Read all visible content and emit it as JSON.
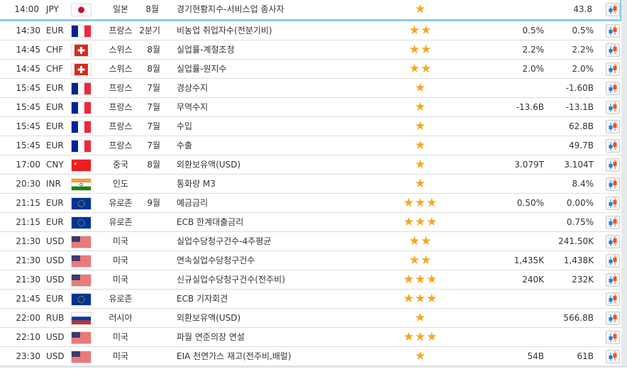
{
  "colors": {
    "star": "#f5a623",
    "highlight_border": "#8ecbea"
  },
  "rows": [
    {
      "time": "14:00",
      "currency": "JPY",
      "flag": "jp",
      "country": "일본",
      "period": "8월",
      "event": "경기현황지수-서비스업 종사자",
      "stars": "★",
      "forecast": "",
      "actual": "43.8"
    },
    {
      "time": "14:30",
      "currency": "EUR",
      "flag": "fr",
      "country": "프랑스",
      "period": "2분기",
      "event": "비농업 취업자수(전분기비)",
      "stars": "★★",
      "forecast": "0.5%",
      "actual": "0.5%"
    },
    {
      "time": "14:45",
      "currency": "CHF",
      "flag": "ch",
      "country": "스위스",
      "period": "8월",
      "event": "실업률-계절조정",
      "stars": "★★",
      "forecast": "2.2%",
      "actual": "2.2%"
    },
    {
      "time": "14:45",
      "currency": "CHF",
      "flag": "ch",
      "country": "스위스",
      "period": "8월",
      "event": "실업률-원지수",
      "stars": "★★",
      "forecast": "2.0%",
      "actual": "2.0%"
    },
    {
      "time": "15:45",
      "currency": "EUR",
      "flag": "fr",
      "country": "프랑스",
      "period": "7월",
      "event": "경상수지",
      "stars": "★",
      "forecast": "",
      "actual": "-1.60B"
    },
    {
      "time": "15:45",
      "currency": "EUR",
      "flag": "fr",
      "country": "프랑스",
      "period": "7월",
      "event": "무역수지",
      "stars": "★",
      "forecast": "-13.6B",
      "actual": "-13.1B"
    },
    {
      "time": "15:45",
      "currency": "EUR",
      "flag": "fr",
      "country": "프랑스",
      "period": "7월",
      "event": "수입",
      "stars": "★",
      "forecast": "",
      "actual": "62.8B"
    },
    {
      "time": "15:45",
      "currency": "EUR",
      "flag": "fr",
      "country": "프랑스",
      "period": "7월",
      "event": "수출",
      "stars": "★",
      "forecast": "",
      "actual": "49.7B"
    },
    {
      "time": "17:00",
      "currency": "CNY",
      "flag": "cn",
      "country": "중국",
      "period": "8월",
      "event": "외환보유액(USD)",
      "stars": "★",
      "forecast": "3.079T",
      "actual": "3.104T"
    },
    {
      "time": "20:30",
      "currency": "INR",
      "flag": "in",
      "country": "인도",
      "period": "",
      "event": "통화량 M3",
      "stars": "★",
      "forecast": "",
      "actual": "8.4%"
    },
    {
      "time": "21:15",
      "currency": "EUR",
      "flag": "eu",
      "country": "유로존",
      "period": "9월",
      "event": "예금금리",
      "stars": "★★★",
      "forecast": "0.50%",
      "actual": "0.00%"
    },
    {
      "time": "21:15",
      "currency": "EUR",
      "flag": "eu",
      "country": "유로존",
      "period": "",
      "event": "ECB 한계대출금리",
      "stars": "★★★",
      "forecast": "",
      "actual": "0.75%"
    },
    {
      "time": "21:30",
      "currency": "USD",
      "flag": "us",
      "country": "미국",
      "period": "",
      "event": "실업수당청구건수-4주평균",
      "stars": "★★",
      "forecast": "",
      "actual": "241.50K"
    },
    {
      "time": "21:30",
      "currency": "USD",
      "flag": "us",
      "country": "미국",
      "period": "",
      "event": "연속실업수당청구건수",
      "stars": "★★",
      "forecast": "1,435K",
      "actual": "1,438K"
    },
    {
      "time": "21:30",
      "currency": "USD",
      "flag": "us",
      "country": "미국",
      "period": "",
      "event": "신규실업수당청구건수(전주비)",
      "stars": "★★★",
      "forecast": "240K",
      "actual": "232K"
    },
    {
      "time": "21:45",
      "currency": "EUR",
      "flag": "eu",
      "country": "유로존",
      "period": "",
      "event": "ECB 기자회견",
      "stars": "★★★",
      "forecast": "",
      "actual": ""
    },
    {
      "time": "22:00",
      "currency": "RUB",
      "flag": "ru",
      "country": "러시아",
      "period": "",
      "event": "외환보유액(USD)",
      "stars": "★",
      "forecast": "",
      "actual": "566.8B"
    },
    {
      "time": "22:10",
      "currency": "USD",
      "flag": "us",
      "country": "미국",
      "period": "",
      "event": "파월 연준의장 연설",
      "stars": "★★★",
      "forecast": "",
      "actual": ""
    },
    {
      "time": "23:30",
      "currency": "USD",
      "flag": "us",
      "country": "미국",
      "period": "",
      "event": "EIA 천연가스 재고(전주비,배럴)",
      "stars": "★",
      "forecast": "54B",
      "actual": "61B"
    }
  ]
}
